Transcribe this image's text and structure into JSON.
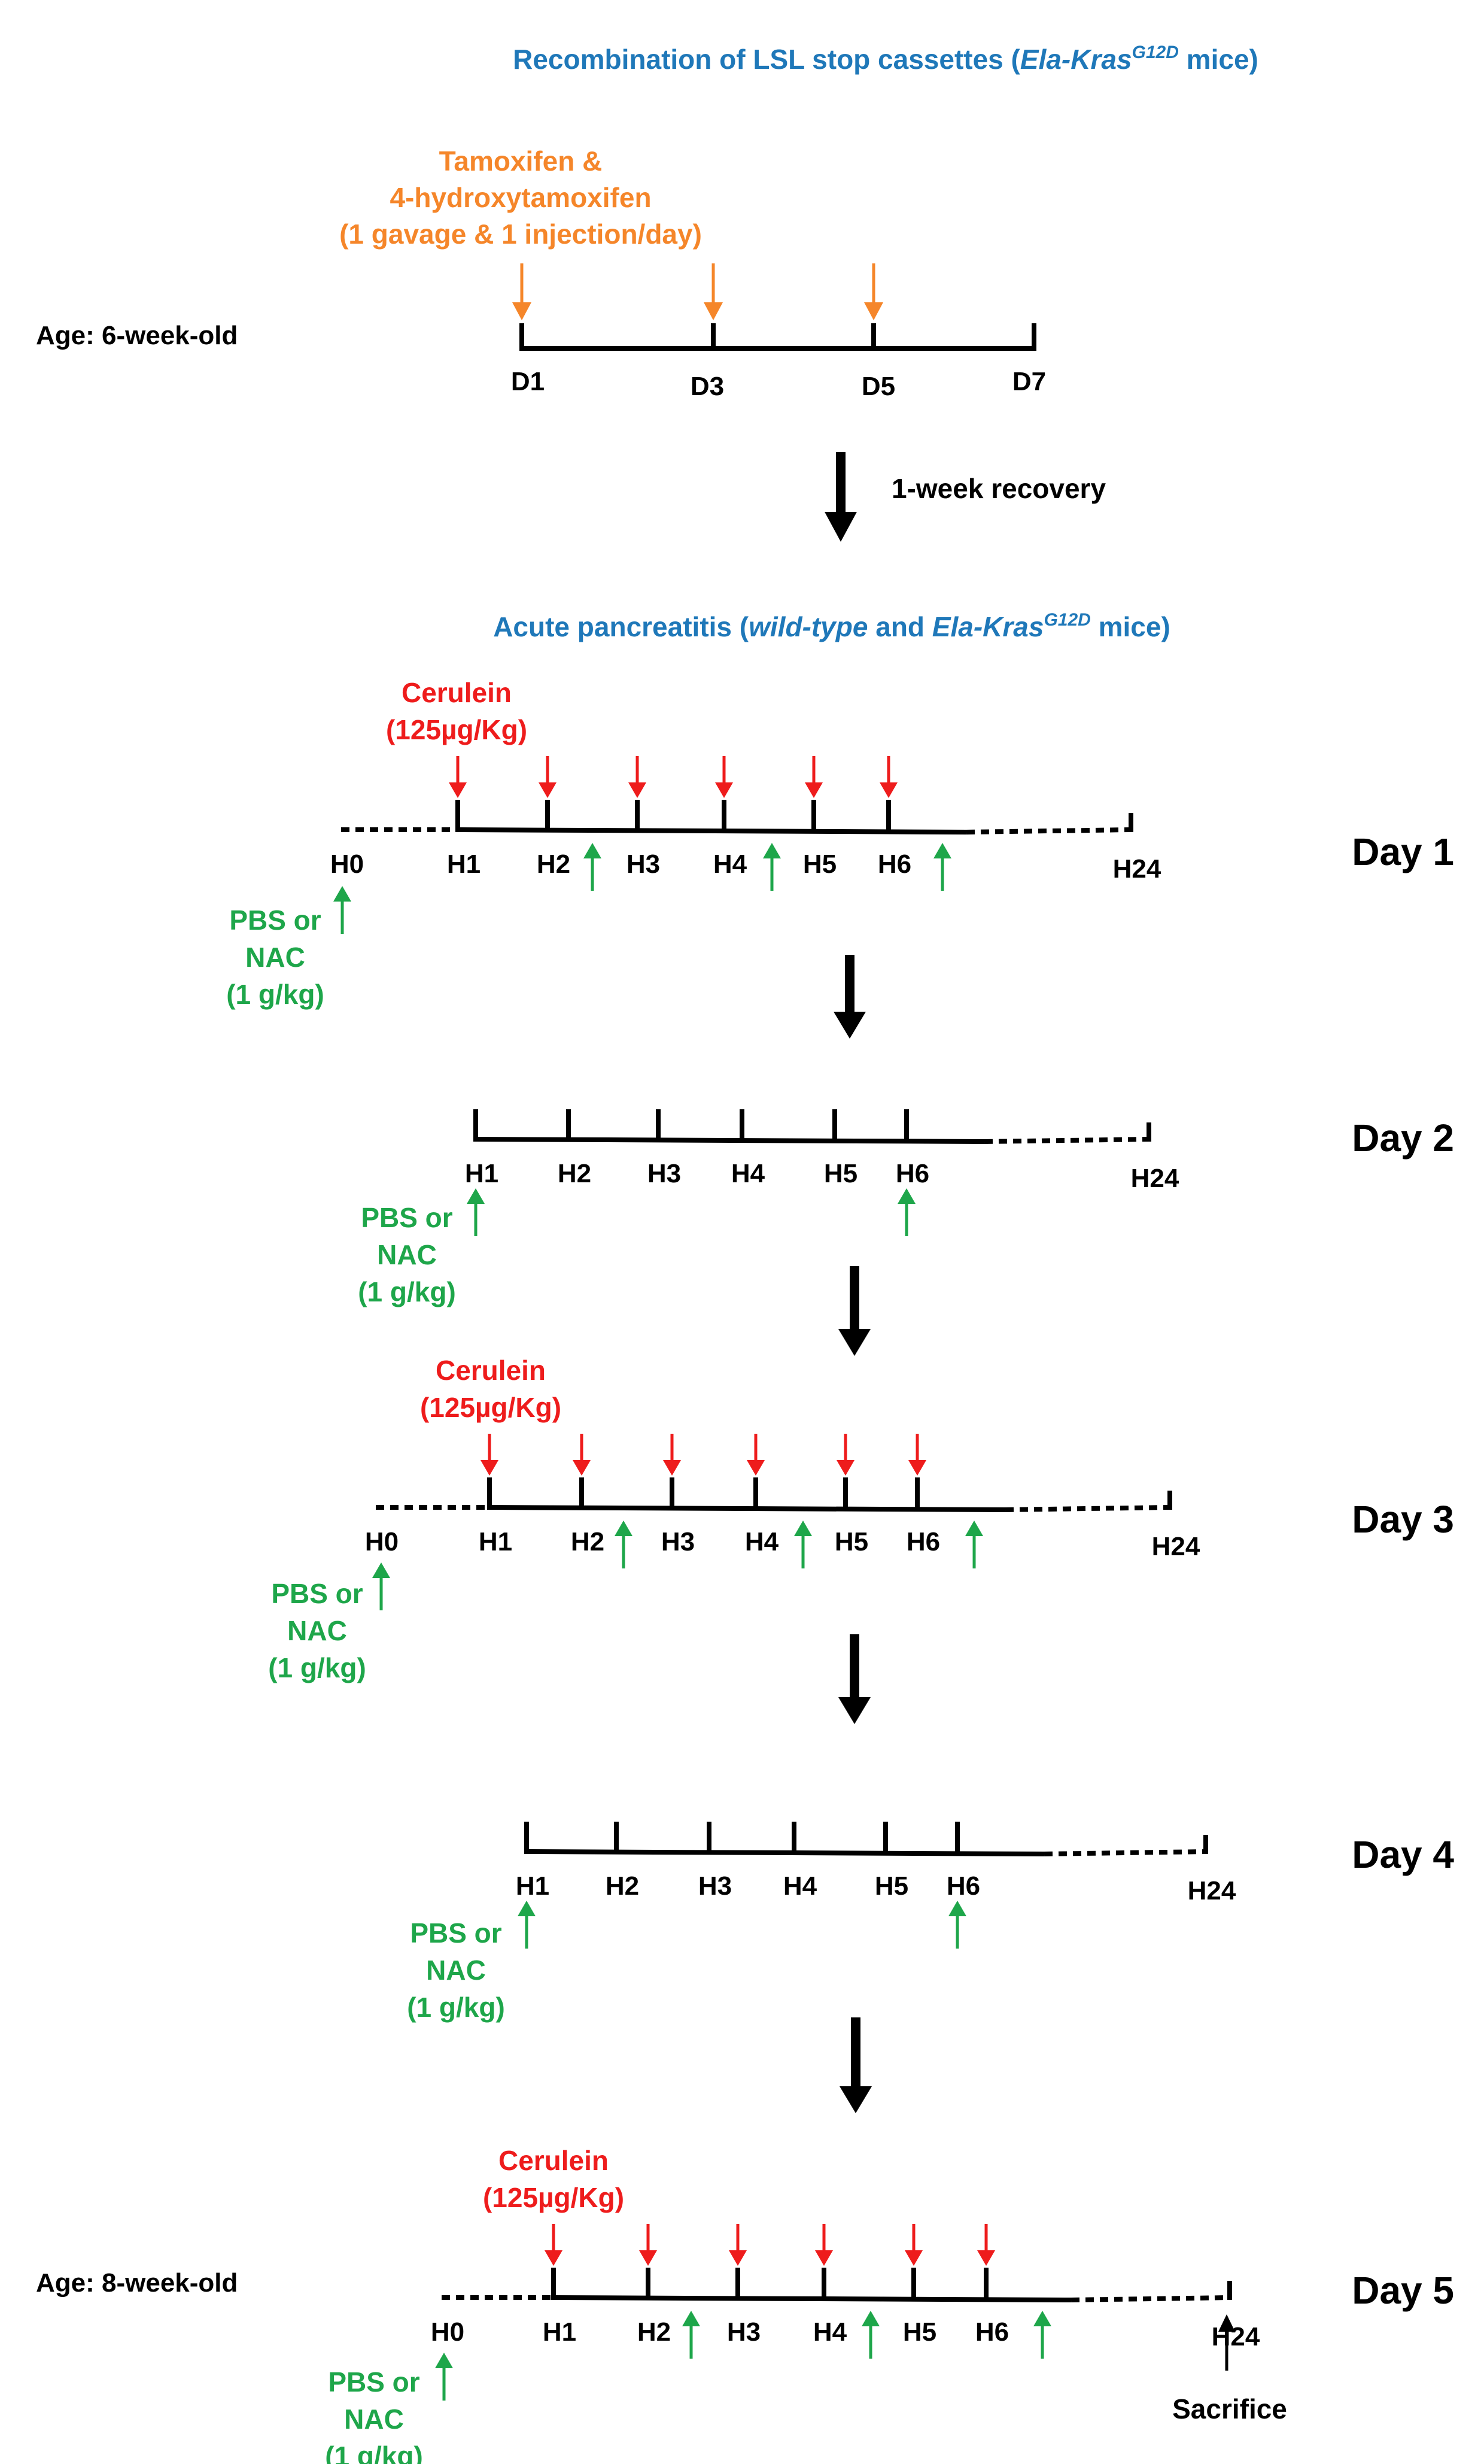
{
  "colors": {
    "blue": "#1f78b9",
    "orange": "#f5862a",
    "red": "#ee1c1c",
    "green": "#1ea64a",
    "black": "#000000"
  },
  "section1": {
    "title_pre": "Recombination of LSL stop cassettes (",
    "title_italic": "Ela-Kras",
    "title_sup": "G12D",
    "title_post": " mice)",
    "treatment": [
      "Tamoxifen &",
      "4-hydroxytamoxifen",
      "(1 gavage & 1 injection/day)"
    ],
    "age_label": "Age: 6-week-old",
    "ticks": [
      "D1",
      "D3",
      "D5",
      "D7"
    ]
  },
  "recovery": "1-week recovery",
  "section2": {
    "title_pre": "Acute pancreatitis (",
    "title_italic1": "wild-type",
    "title_mid": " and ",
    "title_italic2": "Ela-Kras",
    "title_sup": "G12D",
    "title_post": " mice)"
  },
  "cerulein": [
    "Cerulein",
    "(125µg/Kg)"
  ],
  "treatment_label": [
    "PBS or",
    "NAC",
    "(1 g/kg)"
  ],
  "hour_ticks": [
    "H1",
    "H2",
    "H3",
    "H4",
    "H5",
    "H6"
  ],
  "h0_label": "H0",
  "h24_label": "H24",
  "days": [
    "Day 1",
    "Day 2",
    "Day 3",
    "Day 4",
    "Day 5"
  ],
  "age_final": "Age: 8-week-old",
  "sacrifice": "Sacrifice"
}
